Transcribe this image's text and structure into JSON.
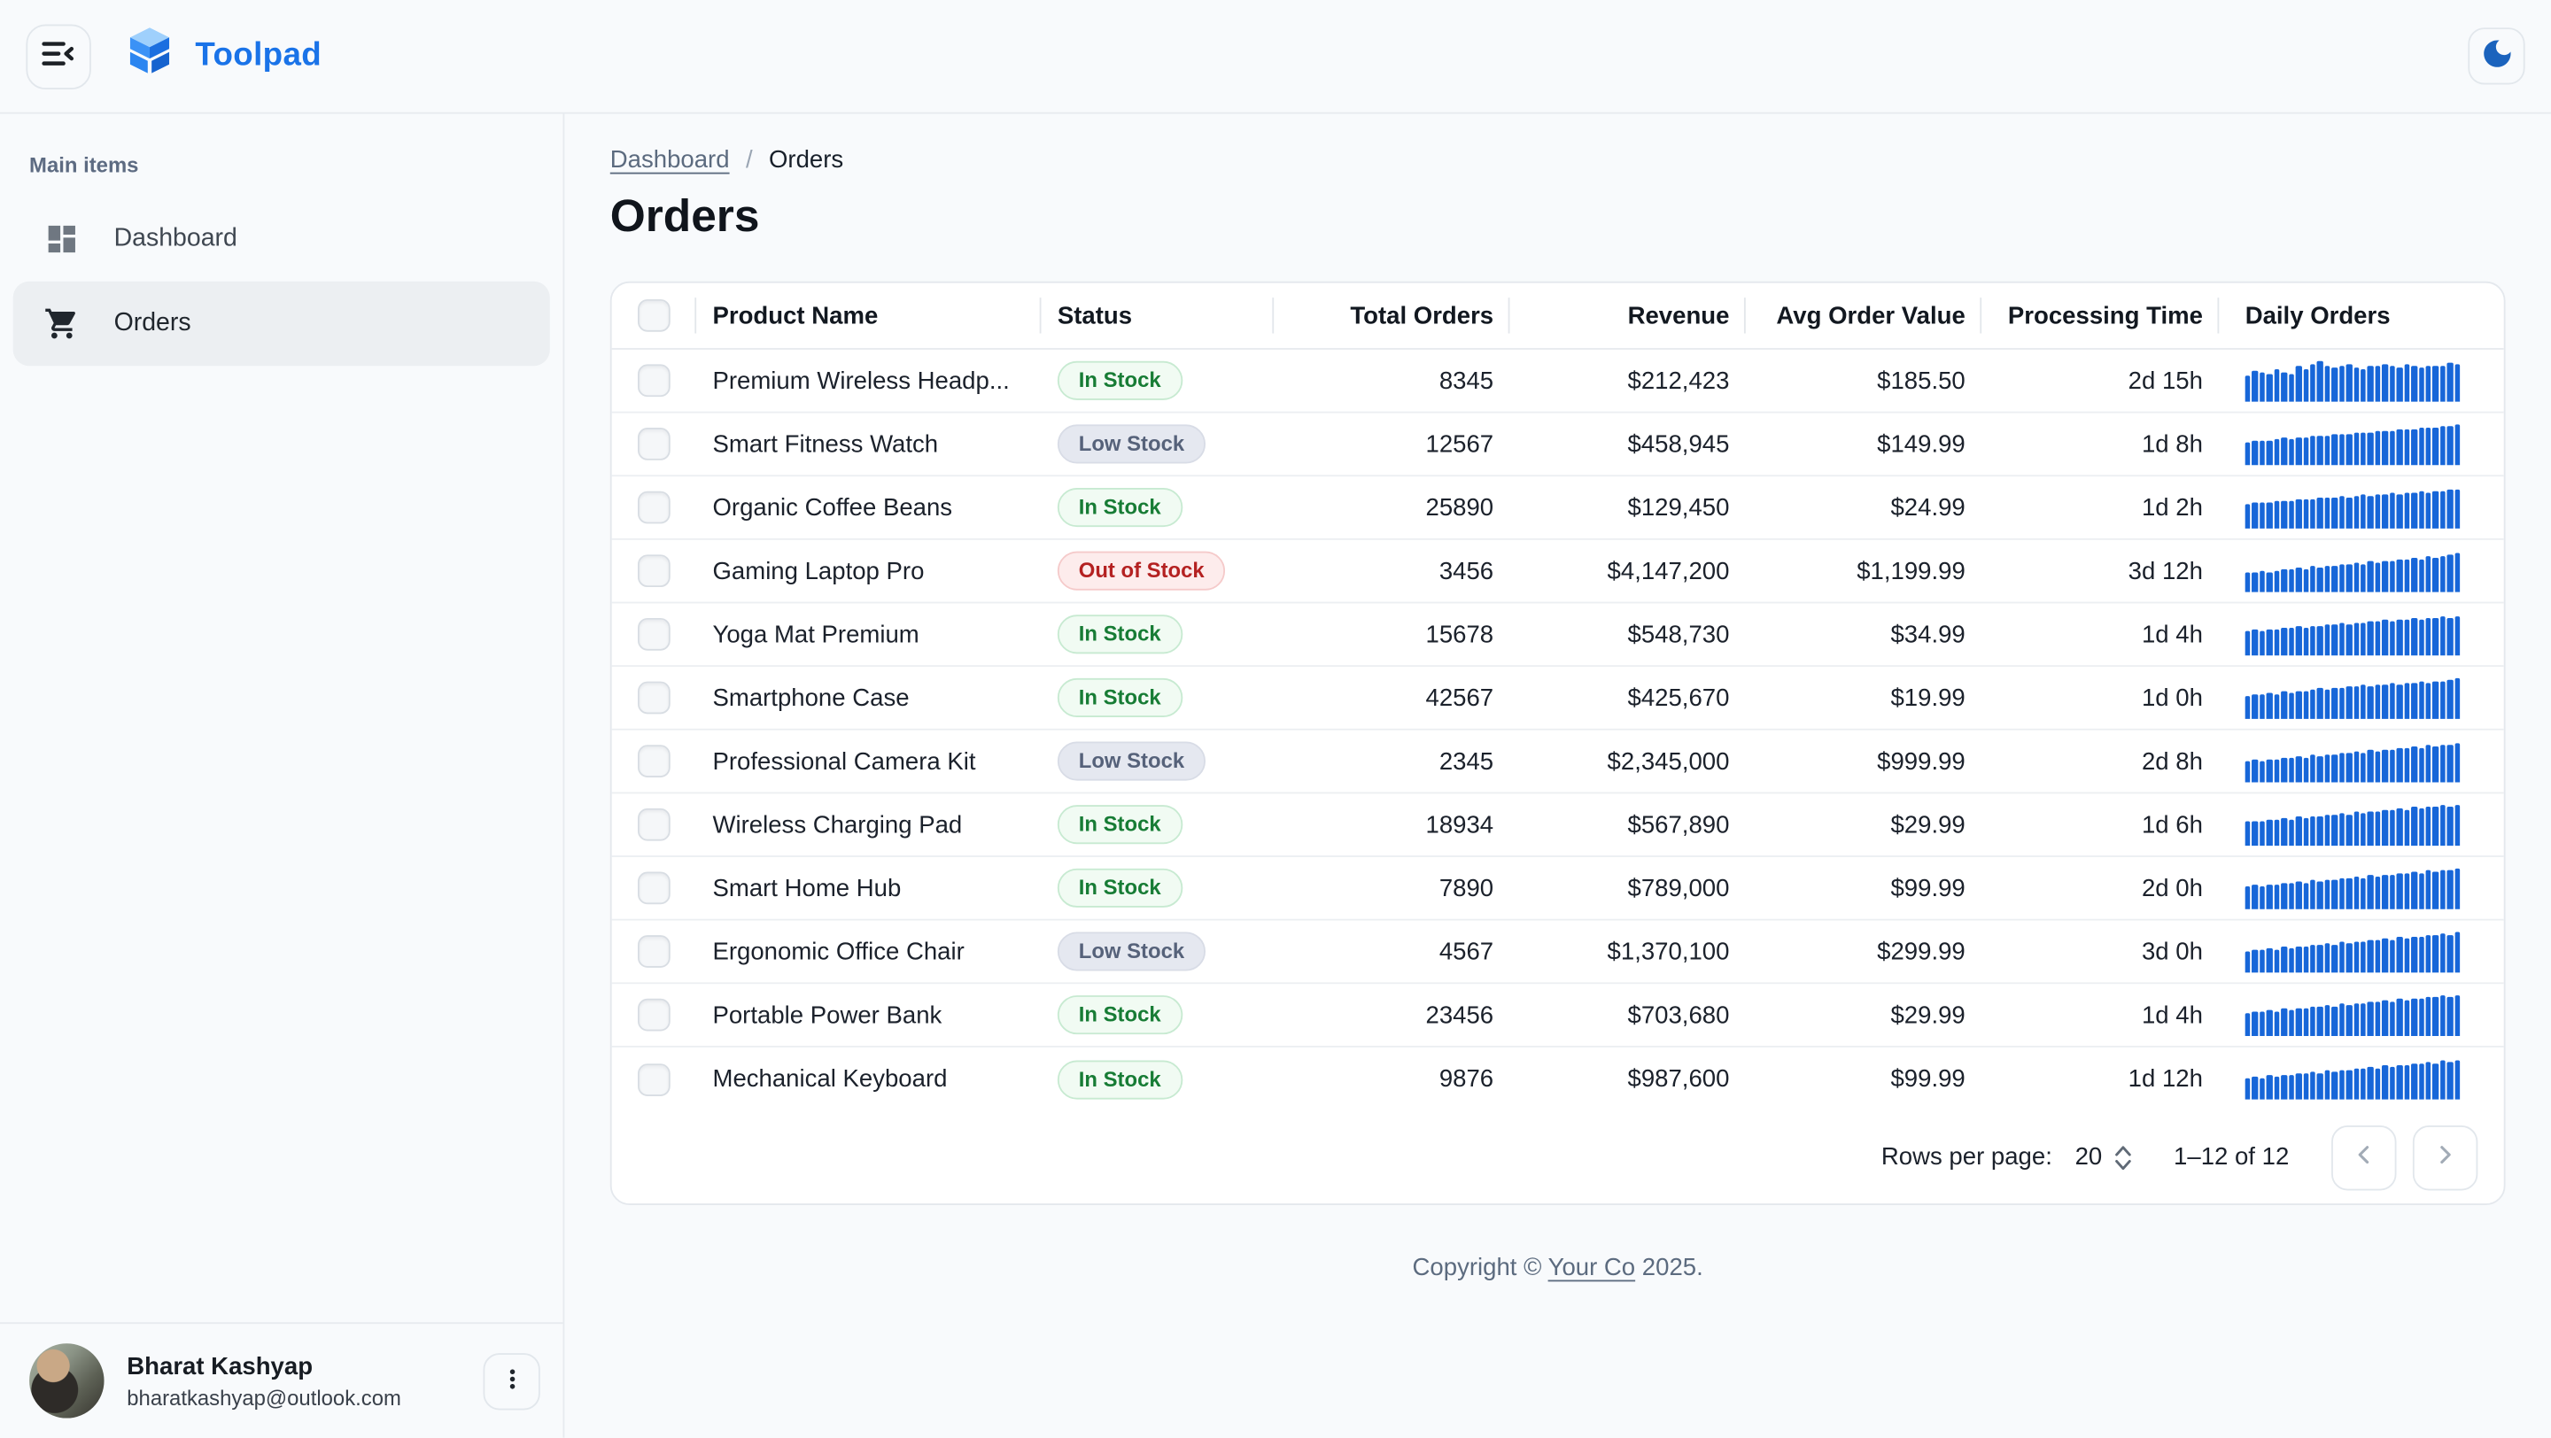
{
  "app": {
    "title": "Toolpad"
  },
  "colors": {
    "brand": "#1a73e8",
    "spark_bar": "#1766d8",
    "moon_icon": "#1b63bd",
    "in_stock_text": "#177c35",
    "low_stock_text": "#56627a",
    "out_of_stock_text": "#b42121"
  },
  "icons": {
    "collapse-menu-icon": "hamburger lines with left chevron",
    "toolpad-logo": "blue isometric 3d blocks",
    "dark-mode-icon": "crescent moon",
    "dashboard-icon": "dashboard grid",
    "cart-icon": "shopping cart",
    "more-vert-icon": "vertical ellipsis",
    "chevron-left-icon": "‹",
    "chevron-right-icon": "›",
    "stepper-icon": "up and down chevrons",
    "checkbox-icon": "unchecked rounded checkbox"
  },
  "sidebar": {
    "section_label": "Main items",
    "items": [
      {
        "label": "Dashboard",
        "icon": "dashboard-icon",
        "active": false
      },
      {
        "label": "Orders",
        "icon": "cart-icon",
        "active": true
      }
    ],
    "user": {
      "name": "Bharat Kashyap",
      "email": "bharatkashyap@outlook.com"
    }
  },
  "breadcrumb": {
    "parent": "Dashboard",
    "separator": "/",
    "current": "Orders"
  },
  "page": {
    "title": "Orders"
  },
  "table": {
    "columns": [
      {
        "label": "Product Name",
        "align": "left"
      },
      {
        "label": "Status",
        "align": "left"
      },
      {
        "label": "Total Orders",
        "align": "right"
      },
      {
        "label": "Revenue",
        "align": "right"
      },
      {
        "label": "Avg Order Value",
        "align": "right"
      },
      {
        "label": "Processing Time",
        "align": "right"
      },
      {
        "label": "Daily Orders",
        "align": "left"
      }
    ],
    "rows": [
      {
        "product": "Premium Wireless Headp...",
        "status": "In Stock",
        "status_type": "in_stock",
        "total_orders": "8345",
        "revenue": "$212,423",
        "avg_order_value": "$185.50",
        "processing_time": "2d 15h",
        "daily_orders": [
          62,
          75,
          70,
          66,
          80,
          72,
          68,
          85,
          78,
          90,
          100,
          88,
          82,
          86,
          92,
          84,
          80,
          88,
          85,
          90,
          87,
          83,
          89,
          86,
          84,
          88,
          85,
          87,
          95,
          90
        ]
      },
      {
        "product": "Smart Fitness Watch",
        "status": "Low Stock",
        "status_type": "low_stock",
        "total_orders": "12567",
        "revenue": "$458,945",
        "avg_order_value": "$149.99",
        "processing_time": "1d 8h",
        "daily_orders": [
          55,
          58,
          60,
          57,
          63,
          65,
          62,
          68,
          66,
          70,
          72,
          69,
          74,
          76,
          73,
          78,
          80,
          77,
          82,
          84,
          81,
          86,
          88,
          85,
          90,
          92,
          89,
          94,
          96,
          100
        ]
      },
      {
        "product": "Organic Coffee Beans",
        "status": "In Stock",
        "status_type": "in_stock",
        "total_orders": "25890",
        "revenue": "$129,450",
        "avg_order_value": "$24.99",
        "processing_time": "1d 2h",
        "daily_orders": [
          60,
          62,
          64,
          61,
          66,
          68,
          65,
          70,
          72,
          69,
          74,
          76,
          73,
          78,
          75,
          80,
          82,
          79,
          84,
          81,
          86,
          83,
          88,
          85,
          90,
          87,
          92,
          89,
          94,
          96
        ]
      },
      {
        "product": "Gaming Laptop Pro",
        "status": "Out of Stock",
        "status_type": "out_of_stock",
        "total_orders": "3456",
        "revenue": "$4,147,200",
        "avg_order_value": "$1,199.99",
        "processing_time": "3d 12h",
        "daily_orders": [
          45,
          48,
          50,
          47,
          52,
          55,
          53,
          58,
          56,
          61,
          59,
          64,
          62,
          67,
          65,
          70,
          68,
          73,
          71,
          76,
          74,
          79,
          77,
          82,
          80,
          85,
          83,
          88,
          92,
          96
        ]
      },
      {
        "product": "Yoga Mat Premium",
        "status": "In Stock",
        "status_type": "in_stock",
        "total_orders": "15678",
        "revenue": "$548,730",
        "avg_order_value": "$34.99",
        "processing_time": "1d 4h",
        "daily_orders": [
          58,
          61,
          59,
          64,
          62,
          67,
          65,
          70,
          68,
          72,
          70,
          75,
          73,
          78,
          76,
          80,
          78,
          83,
          81,
          85,
          83,
          87,
          85,
          89,
          87,
          91,
          89,
          93,
          91,
          95
        ]
      },
      {
        "product": "Smartphone Case",
        "status": "In Stock",
        "status_type": "in_stock",
        "total_orders": "42567",
        "revenue": "$425,670",
        "avg_order_value": "$19.99",
        "processing_time": "1d 0h",
        "daily_orders": [
          55,
          59,
          57,
          62,
          60,
          65,
          63,
          68,
          66,
          70,
          74,
          72,
          76,
          74,
          79,
          77,
          81,
          79,
          84,
          82,
          86,
          84,
          88,
          86,
          90,
          88,
          92,
          90,
          94,
          97
        ]
      },
      {
        "product": "Professional Camera Kit",
        "status": "Low Stock",
        "status_type": "low_stock",
        "total_orders": "2345",
        "revenue": "$2,345,000",
        "avg_order_value": "$999.99",
        "processing_time": "2d 8h",
        "daily_orders": [
          50,
          53,
          51,
          56,
          54,
          59,
          57,
          62,
          60,
          65,
          63,
          68,
          66,
          71,
          69,
          74,
          72,
          77,
          75,
          80,
          78,
          83,
          81,
          86,
          84,
          89,
          87,
          92,
          90,
          95
        ]
      },
      {
        "product": "Wireless Charging Pad",
        "status": "In Stock",
        "status_type": "in_stock",
        "total_orders": "18934",
        "revenue": "$567,890",
        "avg_order_value": "$29.99",
        "processing_time": "1d 6h",
        "daily_orders": [
          57,
          60,
          58,
          63,
          61,
          66,
          64,
          69,
          67,
          72,
          70,
          75,
          73,
          78,
          76,
          81,
          79,
          84,
          82,
          87,
          85,
          90,
          88,
          93,
          91,
          96,
          94,
          98,
          96,
          100
        ]
      },
      {
        "product": "Smart Home Hub",
        "status": "In Stock",
        "status_type": "in_stock",
        "total_orders": "7890",
        "revenue": "$789,000",
        "avg_order_value": "$99.99",
        "processing_time": "2d 0h",
        "daily_orders": [
          54,
          57,
          55,
          60,
          58,
          63,
          61,
          66,
          64,
          69,
          67,
          72,
          70,
          75,
          73,
          78,
          76,
          81,
          79,
          84,
          82,
          87,
          85,
          90,
          88,
          93,
          91,
          96,
          94,
          98
        ]
      },
      {
        "product": "Ergonomic Office Chair",
        "status": "Low Stock",
        "status_type": "low_stock",
        "total_orders": "4567",
        "revenue": "$1,370,100",
        "avg_order_value": "$299.99",
        "processing_time": "3d 0h",
        "daily_orders": [
          52,
          55,
          53,
          58,
          56,
          61,
          59,
          64,
          62,
          67,
          65,
          70,
          68,
          73,
          71,
          76,
          74,
          79,
          77,
          82,
          80,
          85,
          83,
          88,
          86,
          91,
          89,
          94,
          92,
          97
        ]
      },
      {
        "product": "Portable Power Bank",
        "status": "In Stock",
        "status_type": "in_stock",
        "total_orders": "23456",
        "revenue": "$703,680",
        "avg_order_value": "$29.99",
        "processing_time": "1d 4h",
        "daily_orders": [
          56,
          59,
          57,
          62,
          60,
          65,
          63,
          68,
          66,
          71,
          69,
          74,
          72,
          77,
          75,
          80,
          78,
          83,
          81,
          86,
          84,
          89,
          87,
          92,
          90,
          95,
          93,
          97,
          95,
          100
        ]
      },
      {
        "product": "Mechanical Keyboard",
        "status": "In Stock",
        "status_type": "in_stock",
        "total_orders": "9876",
        "revenue": "$987,600",
        "avg_order_value": "$99.99",
        "processing_time": "1d 12h",
        "daily_orders": [
          53,
          56,
          54,
          59,
          57,
          62,
          60,
          65,
          63,
          68,
          66,
          71,
          69,
          74,
          72,
          77,
          75,
          80,
          78,
          83,
          81,
          86,
          84,
          89,
          87,
          92,
          90,
          95,
          93,
          98
        ]
      }
    ]
  },
  "pagination": {
    "rows_per_page_label": "Rows per page:",
    "rows_per_page": "20",
    "range_label": "1–12 of 12"
  },
  "footer": {
    "prefix": "Copyright © ",
    "link": "Your Co",
    "suffix": " 2025."
  }
}
